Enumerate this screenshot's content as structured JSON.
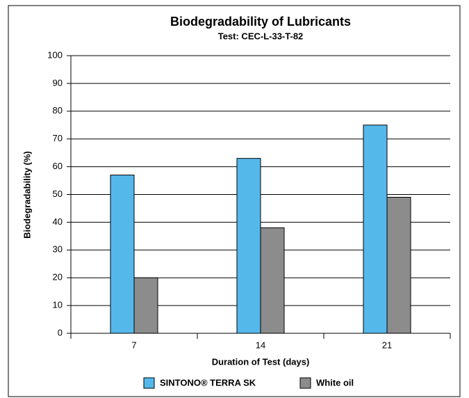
{
  "chart_data": {
    "type": "bar",
    "title": "Biodegradability of Lubricants",
    "subtitle": "Test: CEC-L-33-T-82",
    "x_label": "Duration of Test (days)",
    "y_label": "Biodegradability (%)",
    "categories": [
      "7",
      "14",
      "21"
    ],
    "series": [
      {
        "name": "SINTONO® TERRA SK",
        "color": "#55b8ea",
        "values": [
          57,
          63,
          75
        ]
      },
      {
        "name": "White oil",
        "color": "#8c8c8c",
        "values": [
          20,
          38,
          49
        ]
      }
    ],
    "ylim": [
      0,
      100
    ],
    "yticks": [
      0,
      10,
      20,
      30,
      40,
      50,
      60,
      70,
      80,
      90,
      100
    ],
    "grid": true,
    "legend": "bottom"
  }
}
